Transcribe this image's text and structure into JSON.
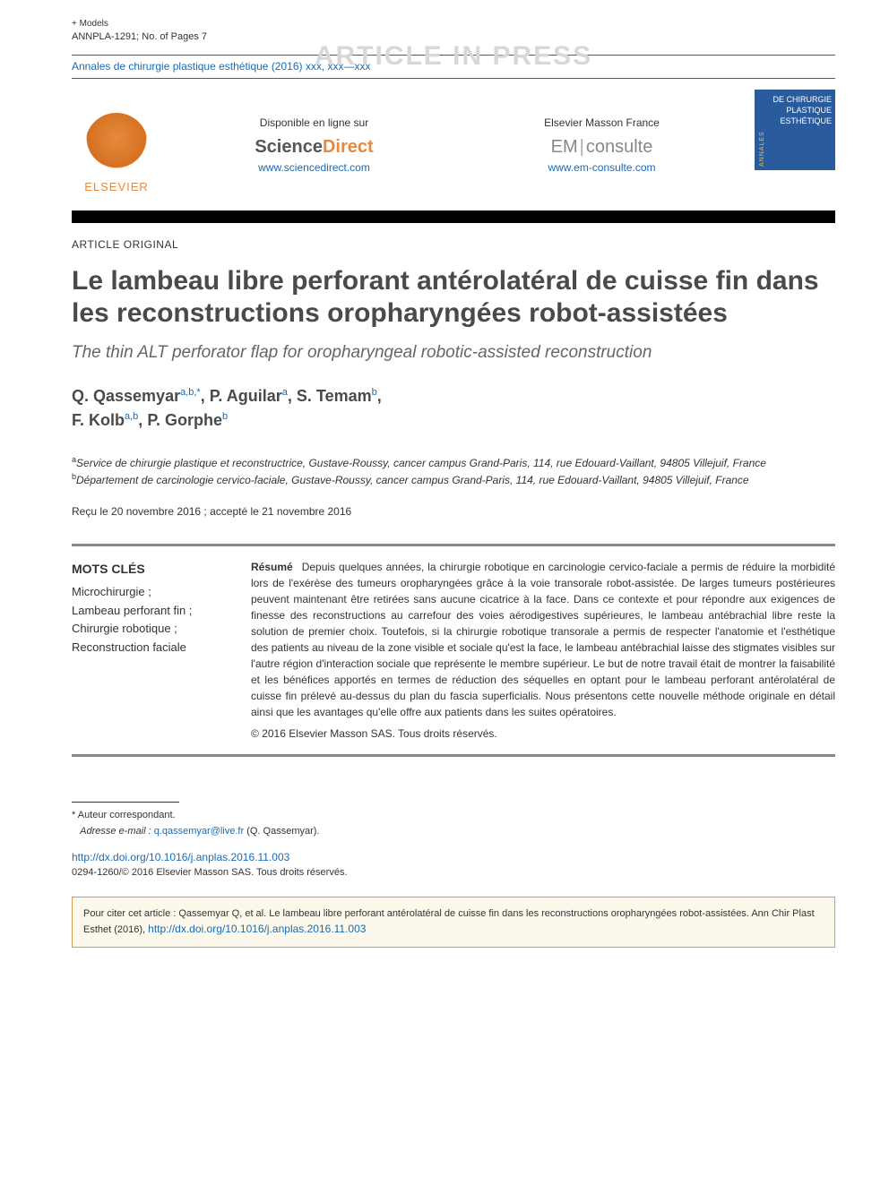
{
  "meta": {
    "plus_models": "+ Models",
    "article_id": "ANNPLA-1291; No. of Pages 7",
    "watermark": "ARTICLE IN PRESS",
    "journal_ref": "Annales de chirurgie plastique esthétique (2016) xxx, xxx—xxx"
  },
  "banner": {
    "elsevier": "ELSEVIER",
    "online_label": "Disponible en ligne sur",
    "sd_science": "Science",
    "sd_direct": "Direct",
    "sd_url": "www.sciencedirect.com",
    "em_label": "Elsevier Masson France",
    "em_prefix": "EM",
    "em_suffix": "consulte",
    "em_url": "www.em-consulte.com",
    "cover_side": "ANNALES",
    "cover_line1": "DE CHIRURGIE",
    "cover_line2": "PLASTIQUE",
    "cover_line3": "ESTHÉTIQUE"
  },
  "article": {
    "type": "ARTICLE ORIGINAL",
    "title_fr": "Le lambeau libre perforant antérolatéral de cuisse fin dans les reconstructions oropharyngées robot-assistées",
    "title_en": "The thin ALT perforator flap for oropharyngeal robotic-assisted reconstruction"
  },
  "authors": {
    "a1_name": "Q. Qassemyar",
    "a1_aff": "a,b,*",
    "a2_name": "P. Aguilar",
    "a2_aff": "a",
    "a3_name": "S. Temam",
    "a3_aff": "b",
    "a4_name": "F. Kolb",
    "a4_aff": "a,b",
    "a5_name": "P. Gorphe",
    "a5_aff": "b"
  },
  "affiliations": {
    "a_sup": "a",
    "a_text": "Service de chirurgie plastique et reconstructrice, Gustave-Roussy, cancer campus Grand-Paris, 114, rue Edouard-Vaillant, 94805 Villejuif, France",
    "b_sup": "b",
    "b_text": "Département de carcinologie cervico-faciale, Gustave-Roussy, cancer campus Grand-Paris, 114, rue Edouard-Vaillant, 94805 Villejuif, France"
  },
  "dates": "Reçu le 20 novembre 2016 ; accepté le 21 novembre 2016",
  "keywords": {
    "heading": "MOTS CLÉS",
    "k1": "Microchirurgie ;",
    "k2": "Lambeau perforant fin ;",
    "k3": "Chirurgie robotique ;",
    "k4": "Reconstruction faciale"
  },
  "abstract": {
    "label": "Résumé",
    "body": "Depuis quelques années, la chirurgie robotique en carcinologie cervico-faciale a permis de réduire la morbidité lors de l'exérèse des tumeurs oropharyngées grâce à la voie transorale robot-assistée. De larges tumeurs postérieures peuvent maintenant être retirées sans aucune cicatrice à la face. Dans ce contexte et pour répondre aux exigences de finesse des reconstructions au carrefour des voies aérodigestives supérieures, le lambeau antébrachial libre reste la solution de premier choix. Toutefois, si la chirurgie robotique transorale a permis de respecter l'anatomie et l'esthétique des patients au niveau de la zone visible et sociale qu'est la face, le lambeau antébrachial laisse des stigmates visibles sur l'autre région d'interaction sociale que représente le membre supérieur. Le but de notre travail était de montrer la faisabilité et les bénéfices apportés en termes de réduction des séquelles en optant pour le lambeau perforant antérolatéral de cuisse fin prélevé au-dessus du plan du fascia superficialis. Nous présentons cette nouvelle méthode originale en détail ainsi que les avantages qu'elle offre aux patients dans les suites opératoires.",
    "copyright": "© 2016 Elsevier Masson SAS. Tous droits réservés."
  },
  "footer": {
    "corr_label": "* Auteur correspondant.",
    "email_label": "Adresse e-mail :",
    "email": "q.qassemyar@live.fr",
    "email_suffix": "(Q. Qassemyar).",
    "doi_url": "http://dx.doi.org/10.1016/j.anplas.2016.11.003",
    "issn_line": "0294-1260/© 2016 Elsevier Masson SAS. Tous droits réservés."
  },
  "citation": {
    "text": "Pour citer cet article : Qassemyar Q, et al. Le lambeau libre perforant antérolatéral de cuisse fin dans les reconstructions oropharyngées robot-assistées. Ann Chir Plast Esthet (2016), ",
    "url": "http://dx.doi.org/10.1016/j.anplas.2016.11.003"
  },
  "colors": {
    "link_blue": "#1a6bb3",
    "elsevier_orange": "#e68a3f",
    "cover_blue": "#2a5b9c",
    "box_border": "#cfa050",
    "box_bg": "#fdf8ec",
    "watermark_gray": "#d8d8d8",
    "rule_gray": "#888888"
  }
}
